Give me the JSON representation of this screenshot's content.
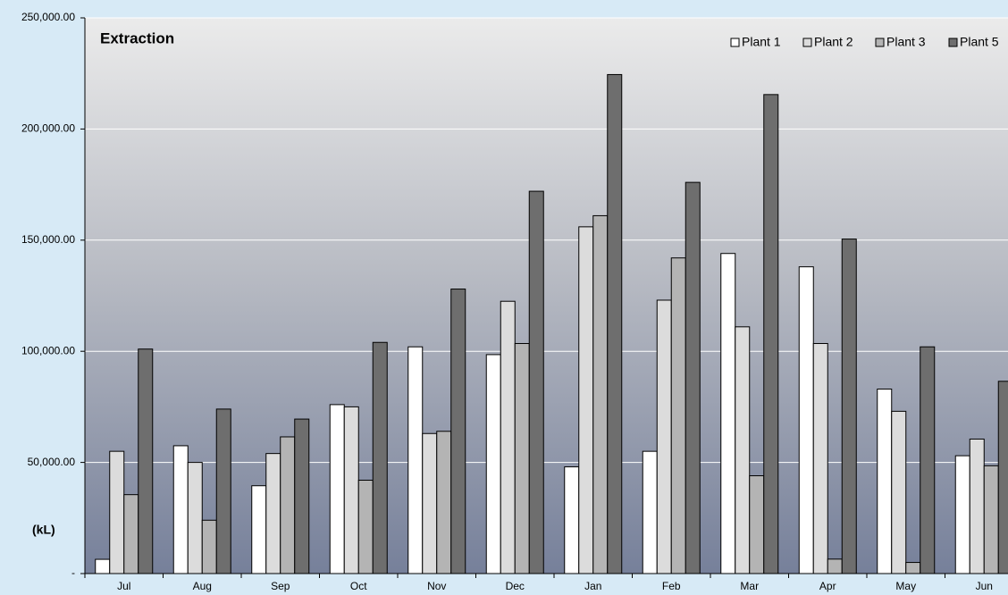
{
  "chart_data": {
    "type": "bar",
    "title": "Extraction",
    "y_label": "(kL)",
    "categories": [
      "Jul",
      "Aug",
      "Sep",
      "Oct",
      "Nov",
      "Dec",
      "Jan",
      "Feb",
      "Mar",
      "Apr",
      "May",
      "Jun"
    ],
    "series": [
      {
        "name": "Plant 1",
        "color": "#ffffff",
        "values": [
          6400,
          57500,
          39500,
          76000,
          102000,
          98500,
          48000,
          55000,
          144000,
          138000,
          83000,
          53000
        ]
      },
      {
        "name": "Plant 2",
        "color": "#dcdcdc",
        "values": [
          55000,
          50000,
          54000,
          75000,
          63000,
          122500,
          156000,
          123000,
          111000,
          103500,
          73000,
          60500
        ]
      },
      {
        "name": "Plant 3",
        "color": "#b4b4b4",
        "values": [
          35500,
          24000,
          61500,
          42000,
          64000,
          103500,
          161000,
          142000,
          44000,
          6500,
          5000,
          48500
        ]
      },
      {
        "name": "Plant 5",
        "color": "#6e6e6e",
        "values": [
          101000,
          74000,
          69500,
          104000,
          128000,
          172000,
          224500,
          176000,
          215500,
          150500,
          102000,
          86500
        ]
      }
    ],
    "ylim": [
      0,
      250000
    ],
    "yticks": [
      {
        "value": 0,
        "label": "-"
      },
      {
        "value": 50000,
        "label": "50,000.00"
      },
      {
        "value": 100000,
        "label": "100,000.00"
      },
      {
        "value": 150000,
        "label": "150,000.00"
      },
      {
        "value": 200000,
        "label": "200,000.00"
      },
      {
        "value": 250000,
        "label": "250,000.00"
      }
    ],
    "grid": true
  }
}
